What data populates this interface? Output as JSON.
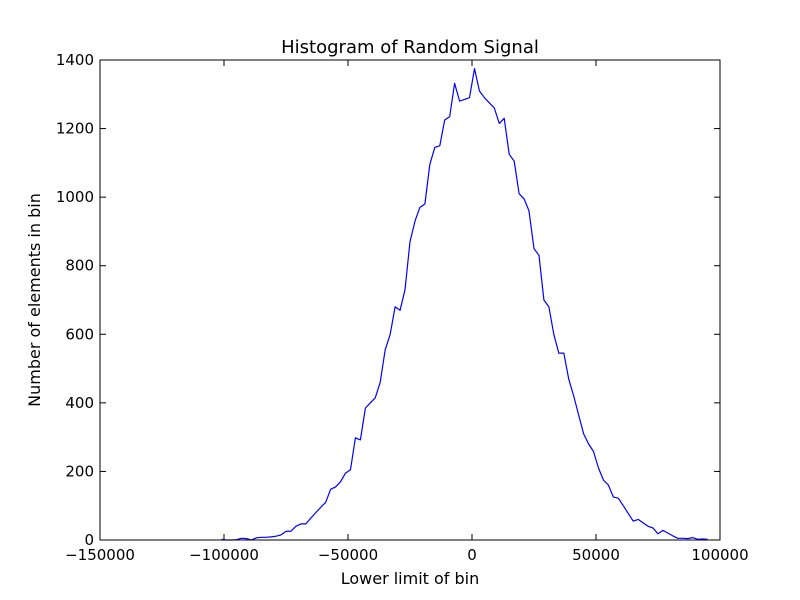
{
  "chart_data": {
    "type": "line",
    "title": "Histogram of Random Signal",
    "xlabel": "Lower limit of bin",
    "ylabel": "Number of elements in bin",
    "xlim": [
      -150000,
      100000
    ],
    "ylim": [
      0,
      1400
    ],
    "x_ticks": [
      -150000,
      -100000,
      -50000,
      0,
      50000,
      100000
    ],
    "x_tick_labels": [
      "−150000",
      "−100000",
      "−50000",
      "0",
      "50000",
      "100000"
    ],
    "y_ticks": [
      0,
      200,
      400,
      600,
      800,
      1000,
      1200,
      1400
    ],
    "y_tick_labels": [
      "0",
      "200",
      "400",
      "600",
      "800",
      "1000",
      "1200",
      "1400"
    ],
    "grid": false,
    "series": [
      {
        "color": "#0000ff",
        "x": [
          -101000,
          -99000,
          -97000,
          -95000,
          -93000,
          -91000,
          -89000,
          -87000,
          -85000,
          -83000,
          -81000,
          -79000,
          -77000,
          -75000,
          -73000,
          -71000,
          -69000,
          -67000,
          -65000,
          -63000,
          -61000,
          -59000,
          -57000,
          -55000,
          -53000,
          -51000,
          -49000,
          -47000,
          -45000,
          -43000,
          -41000,
          -39000,
          -37000,
          -35000,
          -33000,
          -31000,
          -29000,
          -27000,
          -25000,
          -23000,
          -21000,
          -19000,
          -17000,
          -15000,
          -13000,
          -11000,
          -9000,
          -7000,
          -5000,
          -3000,
          -1000,
          1000,
          3000,
          5000,
          7000,
          9000,
          11000,
          13000,
          15000,
          17000,
          19000,
          21000,
          23000,
          25000,
          27000,
          29000,
          31000,
          33000,
          35000,
          37000,
          39000,
          41000,
          43000,
          45000,
          47000,
          49000,
          51000,
          53000,
          55000,
          57000,
          59000,
          61000,
          63000,
          65000,
          67000,
          69000,
          71000,
          73000,
          75000,
          77000,
          79000,
          81000,
          83000,
          85000,
          87000,
          89000,
          91000,
          93000,
          95000
        ],
        "values": [
          2,
          0,
          0,
          1,
          5,
          4,
          0,
          6,
          8,
          8,
          9,
          11,
          15,
          25,
          26,
          40,
          47,
          47,
          64,
          80,
          95,
          110,
          148,
          155,
          170,
          195,
          205,
          298,
          292,
          385,
          400,
          415,
          460,
          555,
          600,
          680,
          670,
          730,
          870,
          930,
          970,
          980,
          1095,
          1145,
          1150,
          1225,
          1235,
          1332,
          1280,
          1285,
          1290,
          1375,
          1310,
          1290,
          1275,
          1260,
          1215,
          1230,
          1125,
          1105,
          1010,
          995,
          960,
          850,
          830,
          700,
          680,
          600,
          545,
          545,
          470,
          420,
          365,
          310,
          280,
          258,
          210,
          175,
          160,
          125,
          122,
          100,
          78,
          55,
          60,
          50,
          40,
          35,
          18,
          28,
          20,
          12,
          5,
          5,
          4,
          7,
          2,
          3,
          2
        ]
      }
    ]
  }
}
